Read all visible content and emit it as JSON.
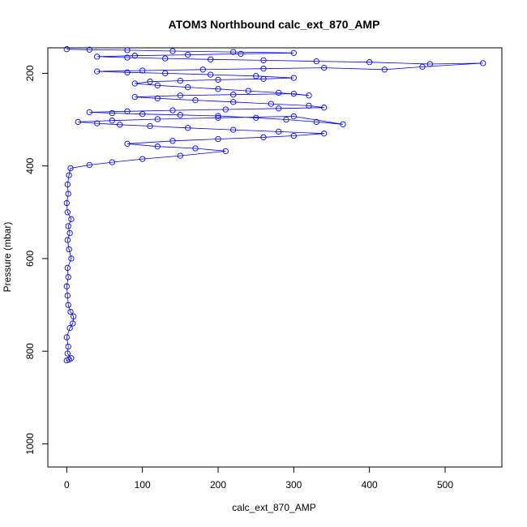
{
  "chart_data": {
    "type": "line",
    "title": "ATOM3 Northbound calc_ext_870_AMP",
    "xlabel": "calc_ext_870_AMP",
    "ylabel": "Pressure (mbar)",
    "xlim": [
      -25,
      575
    ],
    "ylim": [
      1050,
      145
    ],
    "y_reversed": true,
    "x_ticks": [
      0,
      100,
      200,
      300,
      400,
      500
    ],
    "y_ticks": [
      200,
      400,
      600,
      800,
      1000
    ],
    "grid": false,
    "legend": "none",
    "marker": "open-circle",
    "series_color": "#0000ff",
    "series": [
      {
        "values": [
          [
            0,
            820
          ],
          [
            3,
            818
          ],
          [
            6,
            815
          ],
          [
            1,
            805
          ],
          [
            2,
            790
          ],
          [
            0,
            770
          ],
          [
            4,
            750
          ],
          [
            8,
            740
          ],
          [
            9,
            725
          ],
          [
            5,
            715
          ],
          [
            2,
            700
          ],
          [
            1,
            680
          ],
          [
            0,
            660
          ],
          [
            2,
            640
          ],
          [
            1,
            620
          ],
          [
            6,
            600
          ],
          [
            3,
            580
          ],
          [
            1,
            560
          ],
          [
            4,
            545
          ],
          [
            2,
            530
          ],
          [
            6,
            515
          ],
          [
            1,
            500
          ],
          [
            0,
            480
          ],
          [
            2,
            460
          ],
          [
            1,
            440
          ],
          [
            3,
            420
          ],
          [
            5,
            405
          ],
          [
            30,
            398
          ],
          [
            60,
            392
          ],
          [
            100,
            385
          ],
          [
            150,
            378
          ],
          [
            210,
            368
          ],
          [
            170,
            362
          ],
          [
            120,
            358
          ],
          [
            80,
            352
          ],
          [
            140,
            346
          ],
          [
            200,
            342
          ],
          [
            260,
            338
          ],
          [
            300,
            335
          ],
          [
            340,
            330
          ],
          [
            280,
            326
          ],
          [
            220,
            322
          ],
          [
            160,
            318
          ],
          [
            110,
            314
          ],
          [
            70,
            311
          ],
          [
            40,
            308
          ],
          [
            15,
            305
          ],
          [
            60,
            302
          ],
          [
            120,
            299
          ],
          [
            200,
            296
          ],
          [
            300,
            293
          ],
          [
            365,
            310
          ],
          [
            330,
            305
          ],
          [
            290,
            300
          ],
          [
            250,
            296
          ],
          [
            200,
            292
          ],
          [
            150,
            290
          ],
          [
            100,
            288
          ],
          [
            60,
            286
          ],
          [
            30,
            284
          ],
          [
            80,
            282
          ],
          [
            140,
            280
          ],
          [
            210,
            278
          ],
          [
            280,
            276
          ],
          [
            340,
            274
          ],
          [
            320,
            270
          ],
          [
            270,
            266
          ],
          [
            220,
            262
          ],
          [
            170,
            258
          ],
          [
            120,
            254
          ],
          [
            90,
            251
          ],
          [
            150,
            248
          ],
          [
            220,
            246
          ],
          [
            300,
            244
          ],
          [
            320,
            248
          ],
          [
            280,
            242
          ],
          [
            240,
            238
          ],
          [
            200,
            234
          ],
          [
            160,
            230
          ],
          [
            120,
            226
          ],
          [
            90,
            222
          ],
          [
            110,
            218
          ],
          [
            150,
            216
          ],
          [
            200,
            214
          ],
          [
            260,
            212
          ],
          [
            300,
            210
          ],
          [
            250,
            206
          ],
          [
            190,
            203
          ],
          [
            130,
            200
          ],
          [
            80,
            198
          ],
          [
            40,
            196
          ],
          [
            100,
            194
          ],
          [
            180,
            192
          ],
          [
            260,
            190
          ],
          [
            340,
            188
          ],
          [
            420,
            192
          ],
          [
            470,
            186
          ],
          [
            550,
            178
          ],
          [
            480,
            180
          ],
          [
            400,
            176
          ],
          [
            330,
            174
          ],
          [
            260,
            172
          ],
          [
            190,
            170
          ],
          [
            130,
            168
          ],
          [
            80,
            166
          ],
          [
            40,
            164
          ],
          [
            90,
            162
          ],
          [
            160,
            160
          ],
          [
            230,
            158
          ],
          [
            300,
            156
          ],
          [
            220,
            154
          ],
          [
            140,
            152
          ],
          [
            80,
            150
          ],
          [
            30,
            149
          ],
          [
            0,
            148
          ]
        ]
      }
    ]
  }
}
